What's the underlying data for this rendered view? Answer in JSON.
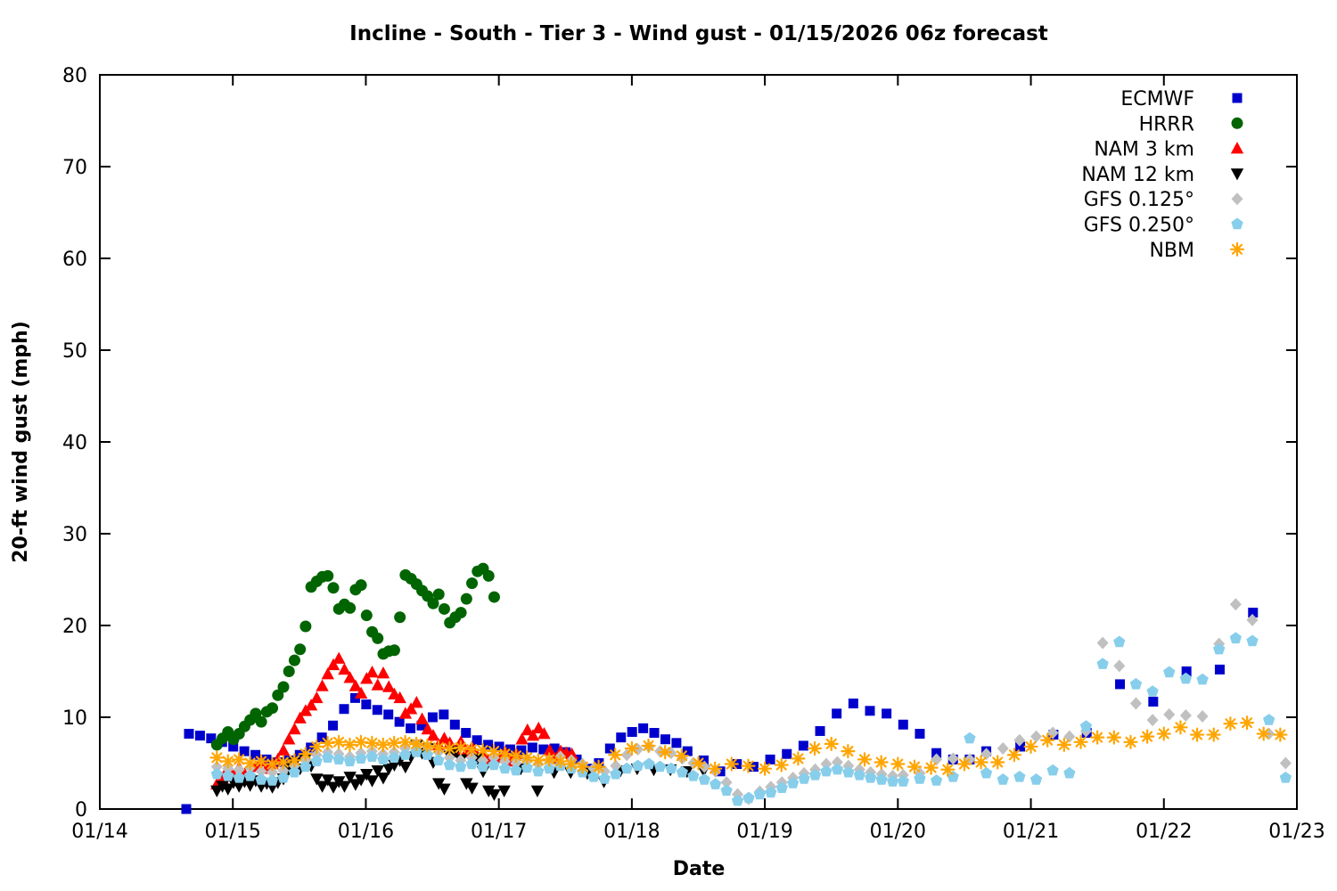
{
  "chart_data": {
    "type": "scatter",
    "title": "Incline - South - Tier 3 - Wind gust - 01/15/2026 06z forecast",
    "xlabel": "Date",
    "ylabel": "20-ft wind gust (mph)",
    "x_tick_labels": [
      "01/14",
      "01/15",
      "01/16",
      "01/17",
      "01/18",
      "01/19",
      "01/20",
      "01/21",
      "01/22",
      "01/23"
    ],
    "y_tick_values": [
      0,
      10,
      20,
      30,
      40,
      50,
      60,
      70,
      80
    ],
    "ylim": [
      0,
      80
    ],
    "x_range_days": [
      0,
      9
    ],
    "grid": false,
    "legend_position": "top-right-inside",
    "series": [
      {
        "name": "ECMWF",
        "label": "ECMWF",
        "marker": "square",
        "color": "#0000cd",
        "segments": [
          {
            "start": 0.65,
            "step": 0.0417,
            "values": [
              0.0
            ]
          },
          {
            "start": 0.67,
            "step": 0.0833,
            "values": [
              8.2,
              8.0,
              7.7,
              7.3,
              6.8,
              6.3,
              5.9,
              5.4,
              5.1,
              5.3,
              5.9,
              6.7,
              7.8,
              9.1,
              10.9,
              12.1,
              11.4,
              10.8,
              10.3,
              9.5,
              8.8,
              9.1,
              10.0,
              10.3,
              9.2,
              8.3,
              7.5,
              7.0,
              6.8,
              6.5,
              6.4,
              6.7,
              6.5,
              6.6,
              6.2,
              5.4,
              4.4,
              5.0,
              6.6,
              7.8,
              8.4,
              8.8,
              8.3,
              7.6,
              7.2,
              6.3
            ]
          },
          {
            "start": 4.54,
            "step": 0.125,
            "values": [
              5.3,
              4.1,
              4.9,
              4.6,
              5.4,
              6.0,
              6.9,
              8.5,
              10.4,
              11.5,
              10.7,
              10.4,
              9.2,
              8.2,
              6.1,
              5.4,
              5.4,
              6.3
            ]
          },
          {
            "start": 6.92,
            "step": 0.25,
            "values": [
              6.8,
              8.1,
              8.3,
              13.6,
              11.7,
              15.0,
              15.2,
              21.4
            ]
          }
        ]
      },
      {
        "name": "HRRR",
        "label": "HRRR",
        "marker": "circle",
        "color": "#006400",
        "segments": [
          {
            "start": 0.88,
            "step": 0.0417,
            "values": [
              7.0,
              7.7,
              8.4,
              7.6,
              8.2,
              9.0,
              9.7,
              10.4,
              9.5,
              10.6,
              11.0,
              12.4,
              13.3,
              15.0,
              16.2,
              17.4,
              19.9,
              24.2,
              24.8,
              25.3,
              25.4,
              24.1,
              21.8,
              22.3,
              21.9,
              23.9,
              24.4,
              21.1,
              19.3,
              18.6,
              16.9,
              17.2,
              17.3,
              20.9,
              25.5,
              25.1,
              24.5,
              23.8,
              23.2,
              22.4,
              23.4,
              21.8,
              20.3,
              20.9,
              21.4,
              22.9,
              24.6,
              25.9,
              26.2,
              25.4,
              23.1
            ]
          }
        ]
      },
      {
        "name": "NAM 3 km",
        "label": "NAM 3 km",
        "marker": "triangle-up",
        "color": "#ff0000",
        "segments": [
          {
            "start": 0.88,
            "step": 0.0417,
            "values": [
              2.7,
              3.3,
              4.4,
              3.6,
              4.5,
              3.8,
              3.3,
              4.6,
              5.2,
              4.4,
              4.9,
              5.4,
              6.4,
              7.6,
              8.7,
              9.9,
              10.7,
              11.3,
              12.1,
              13.4,
              14.7,
              15.7,
              16.4,
              15.2,
              14.3,
              13.4,
              12.6,
              14.2,
              14.9,
              13.5,
              14.8,
              13.3,
              12.5,
              12.1,
              10.4,
              10.9,
              11.6,
              9.8,
              8.7,
              8.0,
              7.0,
              7.7,
              7.2,
              6.3,
              7.3,
              6.2,
              6.7,
              5.7,
              6.1,
              5.3,
              5.7,
              5.6,
              6.2,
              5.2,
              6.0,
              7.6,
              8.6,
              8.0,
              8.8,
              8.2,
              6.4,
              5.5,
              6.3,
              6.1,
              6.0
            ]
          }
        ]
      },
      {
        "name": "NAM 12 km",
        "label": "NAM 12 km",
        "marker": "triangle-down",
        "color": "#000000",
        "segments": [
          {
            "start": 0.88,
            "step": 0.0417,
            "values": [
              2.0,
              2.5,
              2.2,
              2.9,
              2.5,
              3.0,
              2.6,
              3.1,
              2.5,
              2.8,
              2.4,
              2.9,
              3.3,
              4.4,
              5.0,
              4.4,
              5.5,
              4.7,
              3.3,
              2.5,
              3.2,
              2.4,
              3.0,
              2.5,
              3.5,
              2.7,
              3.2,
              3.8,
              3.1,
              4.2,
              3.4,
              4.4,
              4.8,
              5.3,
              4.6,
              5.7,
              7.0,
              6.1,
              6.6,
              5.1,
              2.8,
              2.2,
              5.8,
              6.3,
              5.4,
              2.8,
              2.3,
              5.5,
              4.1,
              2.0,
              1.6
            ]
          },
          {
            "start": 3.04,
            "step": 0.125,
            "values": [
              2.0,
              4.4,
              2.0,
              4.0,
              4.0,
              3.9,
              3.0,
              4.2,
              4.4,
              4.3,
              4.3,
              4.1,
              4.2
            ]
          }
        ]
      },
      {
        "name": "GFS 0.125°",
        "label": "GFS 0.125°",
        "marker": "diamond",
        "color": "#c0c0c0",
        "segments": [
          {
            "start": 0.88,
            "step": 0.0833,
            "values": [
              4.6,
              4.4,
              4.3,
              4.5,
              4.1,
              4.0,
              4.2,
              4.7,
              5.3,
              5.9,
              6.2,
              6.0,
              5.7,
              6.1,
              6.3,
              6.0,
              6.2,
              6.6,
              7.1,
              6.8,
              6.2,
              5.6,
              5.3,
              5.6,
              5.3,
              5.6,
              5.2,
              5.0,
              5.3,
              4.9,
              5.3,
              5.7,
              5.3,
              4.9,
              4.4,
              4.1,
              4.7,
              5.9,
              6.5,
              6.8,
              6.3,
              6.1,
              5.5,
              5.0,
              4.6,
              4.1,
              2.9,
              1.6,
              1.1,
              1.9,
              2.4,
              2.9,
              3.4,
              3.9,
              4.3,
              4.9,
              5.1,
              4.7,
              4.3,
              4.0,
              3.8,
              3.6
            ]
          },
          {
            "start": 6.04,
            "step": 0.125,
            "values": [
              3.7,
              3.9,
              5.4,
              5.5,
              5.4,
              6.0,
              6.6,
              7.5,
              7.9,
              8.3,
              7.9,
              8.5,
              18.1,
              15.6,
              11.5,
              9.7,
              10.3,
              10.2,
              10.1,
              18.0,
              22.3,
              20.6,
              8.2,
              5.0
            ]
          }
        ]
      },
      {
        "name": "GFS 0.250°",
        "label": "GFS 0.250°",
        "marker": "pentagon",
        "color": "#87ceeb",
        "segments": [
          {
            "start": 0.88,
            "step": 0.0833,
            "values": [
              3.8,
              3.6,
              3.4,
              3.6,
              3.2,
              3.1,
              3.4,
              4.0,
              4.6,
              5.2,
              5.6,
              5.4,
              5.2,
              5.5,
              5.7,
              5.4,
              5.6,
              5.9,
              6.2,
              5.9,
              5.3,
              4.8,
              4.6,
              4.9,
              4.6,
              4.8,
              4.4,
              4.2,
              4.5,
              4.1,
              4.4,
              4.7,
              4.4,
              4.0,
              3.5,
              3.3,
              3.8,
              4.4,
              4.7,
              4.9,
              4.6,
              4.4,
              4.0,
              3.6,
              3.2,
              2.7,
              2.0,
              0.9,
              1.2,
              1.6,
              1.8,
              2.3,
              2.8,
              3.3,
              3.7,
              4.1,
              4.3,
              4.0,
              3.7,
              3.4,
              3.2,
              3.0
            ]
          },
          {
            "start": 6.04,
            "step": 0.125,
            "values": [
              3.0,
              3.3,
              3.1,
              3.5,
              7.7,
              3.9,
              3.2,
              3.5,
              3.2,
              4.2,
              3.9,
              9.0,
              15.8,
              18.2,
              13.6,
              12.8,
              14.9,
              14.2,
              14.1,
              17.4,
              18.6,
              18.3,
              9.7,
              3.4
            ]
          }
        ]
      },
      {
        "name": "NBM",
        "label": "NBM",
        "marker": "star",
        "color": "#ffa500",
        "segments": [
          {
            "start": 0.88,
            "step": 0.0833,
            "values": [
              5.6,
              5.2,
              5.4,
              5.0,
              5.2,
              4.9,
              5.1,
              5.3,
              6.0,
              6.8,
              7.2,
              7.3,
              7.0,
              7.3,
              7.2,
              7.0,
              7.2,
              7.3,
              7.1,
              6.9,
              6.7,
              6.6,
              6.7,
              6.5,
              6.4,
              6.3,
              6.0,
              5.8,
              5.6,
              5.3,
              5.4,
              5.2,
              4.9,
              4.6
            ]
          },
          {
            "start": 3.75,
            "step": 0.125,
            "values": [
              4.6,
              5.9,
              6.6,
              6.9,
              6.2,
              5.8,
              5.0,
              4.4,
              4.9,
              4.7,
              4.4,
              4.8,
              5.5,
              6.6,
              7.1,
              6.3,
              5.4,
              5.1,
              4.9,
              4.6,
              4.5,
              4.3,
              4.9,
              5.1,
              5.1,
              5.9,
              6.8,
              7.5,
              7.0,
              7.3,
              7.8,
              7.8,
              7.3,
              7.9,
              8.2,
              8.9,
              8.1,
              8.1,
              9.3,
              9.4,
              8.2,
              8.1
            ]
          }
        ]
      }
    ]
  }
}
